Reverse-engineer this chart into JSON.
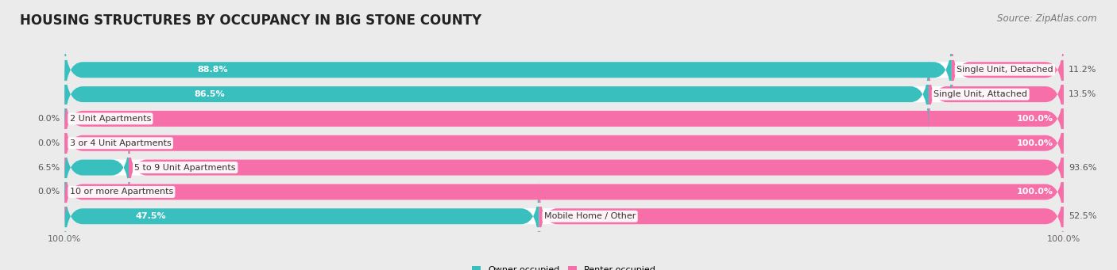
{
  "title": "HOUSING STRUCTURES BY OCCUPANCY IN BIG STONE COUNTY",
  "source": "Source: ZipAtlas.com",
  "categories": [
    "Single Unit, Detached",
    "Single Unit, Attached",
    "2 Unit Apartments",
    "3 or 4 Unit Apartments",
    "5 to 9 Unit Apartments",
    "10 or more Apartments",
    "Mobile Home / Other"
  ],
  "owner_pct": [
    88.8,
    86.5,
    0.0,
    0.0,
    6.5,
    0.0,
    47.5
  ],
  "renter_pct": [
    11.2,
    13.5,
    100.0,
    100.0,
    93.6,
    100.0,
    52.5
  ],
  "owner_color": "#3abfbf",
  "renter_color": "#f76fa8",
  "background_color": "#ebebeb",
  "bar_bg_color": "#ffffff",
  "title_fontsize": 12,
  "source_fontsize": 8.5,
  "label_fontsize": 8.0,
  "bar_height": 0.65,
  "legend_label_owner": "Owner-occupied",
  "legend_label_renter": "Renter-occupied",
  "xlim_left": -2,
  "xlim_right": 102
}
